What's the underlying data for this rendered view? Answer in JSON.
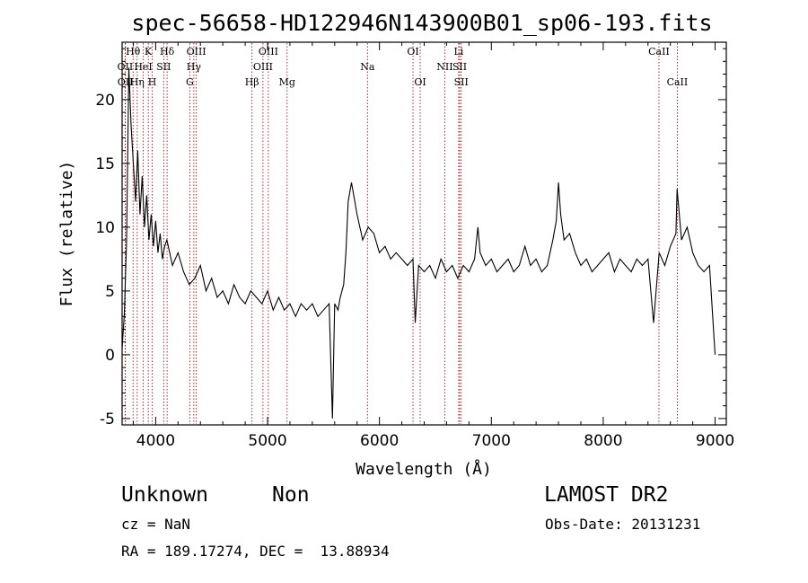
{
  "chart_data": {
    "type": "line",
    "title": "spec-56658-HD122946N143900B01_sp06-193.fits",
    "xlabel": "Wavelength (Å)",
    "ylabel": "Flux (relative)",
    "xlim": [
      3700,
      9100
    ],
    "ylim": [
      -5.5,
      24.5
    ],
    "xticks": [
      4000,
      5000,
      6000,
      7000,
      8000,
      9000
    ],
    "yticks": [
      -5,
      0,
      5,
      10,
      15,
      20
    ],
    "grid": false,
    "line_color": "#000000",
    "marker_color": "#8b0000",
    "series": [
      {
        "x": [
          3700,
          3720,
          3740,
          3760,
          3780,
          3800,
          3820,
          3840,
          3860,
          3880,
          3900,
          3920,
          3940,
          3960,
          3980,
          4000,
          4020,
          4040,
          4060,
          4080,
          4100,
          4150,
          4200,
          4250,
          4300,
          4350,
          4400,
          4450,
          4500,
          4550,
          4600,
          4650,
          4700,
          4750,
          4800,
          4850,
          4900,
          4950,
          5000,
          5050,
          5100,
          5150,
          5200,
          5250,
          5300,
          5350,
          5400,
          5450,
          5500,
          5550,
          5580,
          5600,
          5630,
          5650,
          5680,
          5700,
          5720,
          5750,
          5800,
          5850,
          5900,
          5950,
          6000,
          6050,
          6100,
          6150,
          6200,
          6250,
          6300,
          6320,
          6350,
          6400,
          6450,
          6500,
          6550,
          6600,
          6650,
          6700,
          6750,
          6800,
          6850,
          6880,
          6900,
          6950,
          7000,
          7050,
          7100,
          7150,
          7200,
          7250,
          7300,
          7350,
          7400,
          7450,
          7500,
          7550,
          7580,
          7600,
          7620,
          7650,
          7700,
          7750,
          7800,
          7850,
          7900,
          7950,
          8000,
          8050,
          8100,
          8150,
          8200,
          8250,
          8300,
          8350,
          8400,
          8450,
          8500,
          8550,
          8600,
          8650,
          8660,
          8700,
          8750,
          8800,
          8850,
          8900,
          8950,
          9000
        ],
        "y": [
          0.5,
          3.2,
          9.0,
          22.5,
          18.0,
          15.0,
          12.0,
          16.0,
          11.0,
          14.0,
          10.0,
          12.5,
          9.0,
          11.0,
          8.5,
          10.5,
          8.0,
          9.5,
          7.5,
          8.5,
          9.0,
          7.0,
          8.0,
          6.5,
          5.5,
          6.0,
          7.0,
          5.0,
          6.0,
          4.5,
          5.0,
          4.0,
          5.5,
          4.5,
          4.0,
          5.0,
          4.5,
          4.0,
          5.0,
          3.5,
          4.5,
          3.5,
          4.0,
          3.0,
          4.0,
          3.5,
          4.0,
          3.0,
          3.5,
          4.0,
          -5.0,
          4.0,
          3.5,
          4.5,
          5.5,
          8.0,
          12.0,
          13.5,
          11.0,
          9.0,
          10.0,
          9.5,
          8.0,
          8.5,
          7.5,
          8.0,
          7.5,
          7.0,
          7.5,
          2.5,
          7.0,
          6.5,
          7.0,
          6.0,
          7.5,
          6.5,
          7.0,
          6.0,
          7.0,
          6.5,
          7.5,
          10.0,
          8.0,
          7.0,
          7.5,
          6.5,
          7.0,
          7.5,
          6.5,
          7.0,
          8.5,
          7.0,
          7.5,
          6.5,
          7.0,
          9.0,
          10.5,
          13.5,
          11.0,
          9.0,
          9.5,
          8.0,
          7.0,
          7.5,
          6.5,
          7.0,
          7.5,
          8.0,
          6.5,
          7.5,
          7.0,
          6.5,
          7.5,
          7.0,
          7.5,
          2.5,
          8.0,
          7.0,
          8.5,
          9.5,
          13.0,
          9.0,
          10.0,
          8.0,
          7.0,
          6.5,
          7.0,
          0.0
        ]
      }
    ],
    "line_markers": [
      {
        "label": "Hθ",
        "x": 3798,
        "row": 1
      },
      {
        "label": "OII",
        "x": 3727,
        "row": 2
      },
      {
        "label": "OII",
        "x": 3729,
        "row": 3
      },
      {
        "label": "HeI",
        "x": 3889,
        "row": 2
      },
      {
        "label": "Hη",
        "x": 3835,
        "row": 3
      },
      {
        "label": "K",
        "x": 3934,
        "row": 1
      },
      {
        "label": "H",
        "x": 3969,
        "row": 3
      },
      {
        "label": "SII",
        "x": 4072,
        "row": 2
      },
      {
        "label": "Hδ",
        "x": 4102,
        "row": 1
      },
      {
        "label": "OIII",
        "x": 4363,
        "row": 1
      },
      {
        "label": "Hγ",
        "x": 4341,
        "row": 2
      },
      {
        "label": "G",
        "x": 4305,
        "row": 3
      },
      {
        "label": "Hβ",
        "x": 4861,
        "row": 3
      },
      {
        "label": "OIII",
        "x": 5007,
        "row": 1
      },
      {
        "label": "OIII",
        "x": 4959,
        "row": 2
      },
      {
        "label": "Mg",
        "x": 5175,
        "row": 3
      },
      {
        "label": "Na",
        "x": 5893,
        "row": 2
      },
      {
        "label": "OI",
        "x": 6300,
        "row": 1
      },
      {
        "label": "OI",
        "x": 6364,
        "row": 3
      },
      {
        "label": "NII",
        "x": 6584,
        "row": 2
      },
      {
        "label": "Li",
        "x": 6708,
        "row": 1
      },
      {
        "label": "SII",
        "x": 6717,
        "row": 2
      },
      {
        "label": "SII",
        "x": 6731,
        "row": 3
      },
      {
        "label": "CaII",
        "x": 8498,
        "row": 1
      },
      {
        "label": "CaII",
        "x": 8662,
        "row": 3
      }
    ]
  },
  "info": {
    "object_class": "Unknown",
    "subclass": "Non",
    "survey": "LAMOST DR2",
    "redshift": "cz = NaN",
    "obs_date": "Obs-Date: 20131231",
    "coordinates": "RA = 189.17274, DEC =  13.88934"
  }
}
